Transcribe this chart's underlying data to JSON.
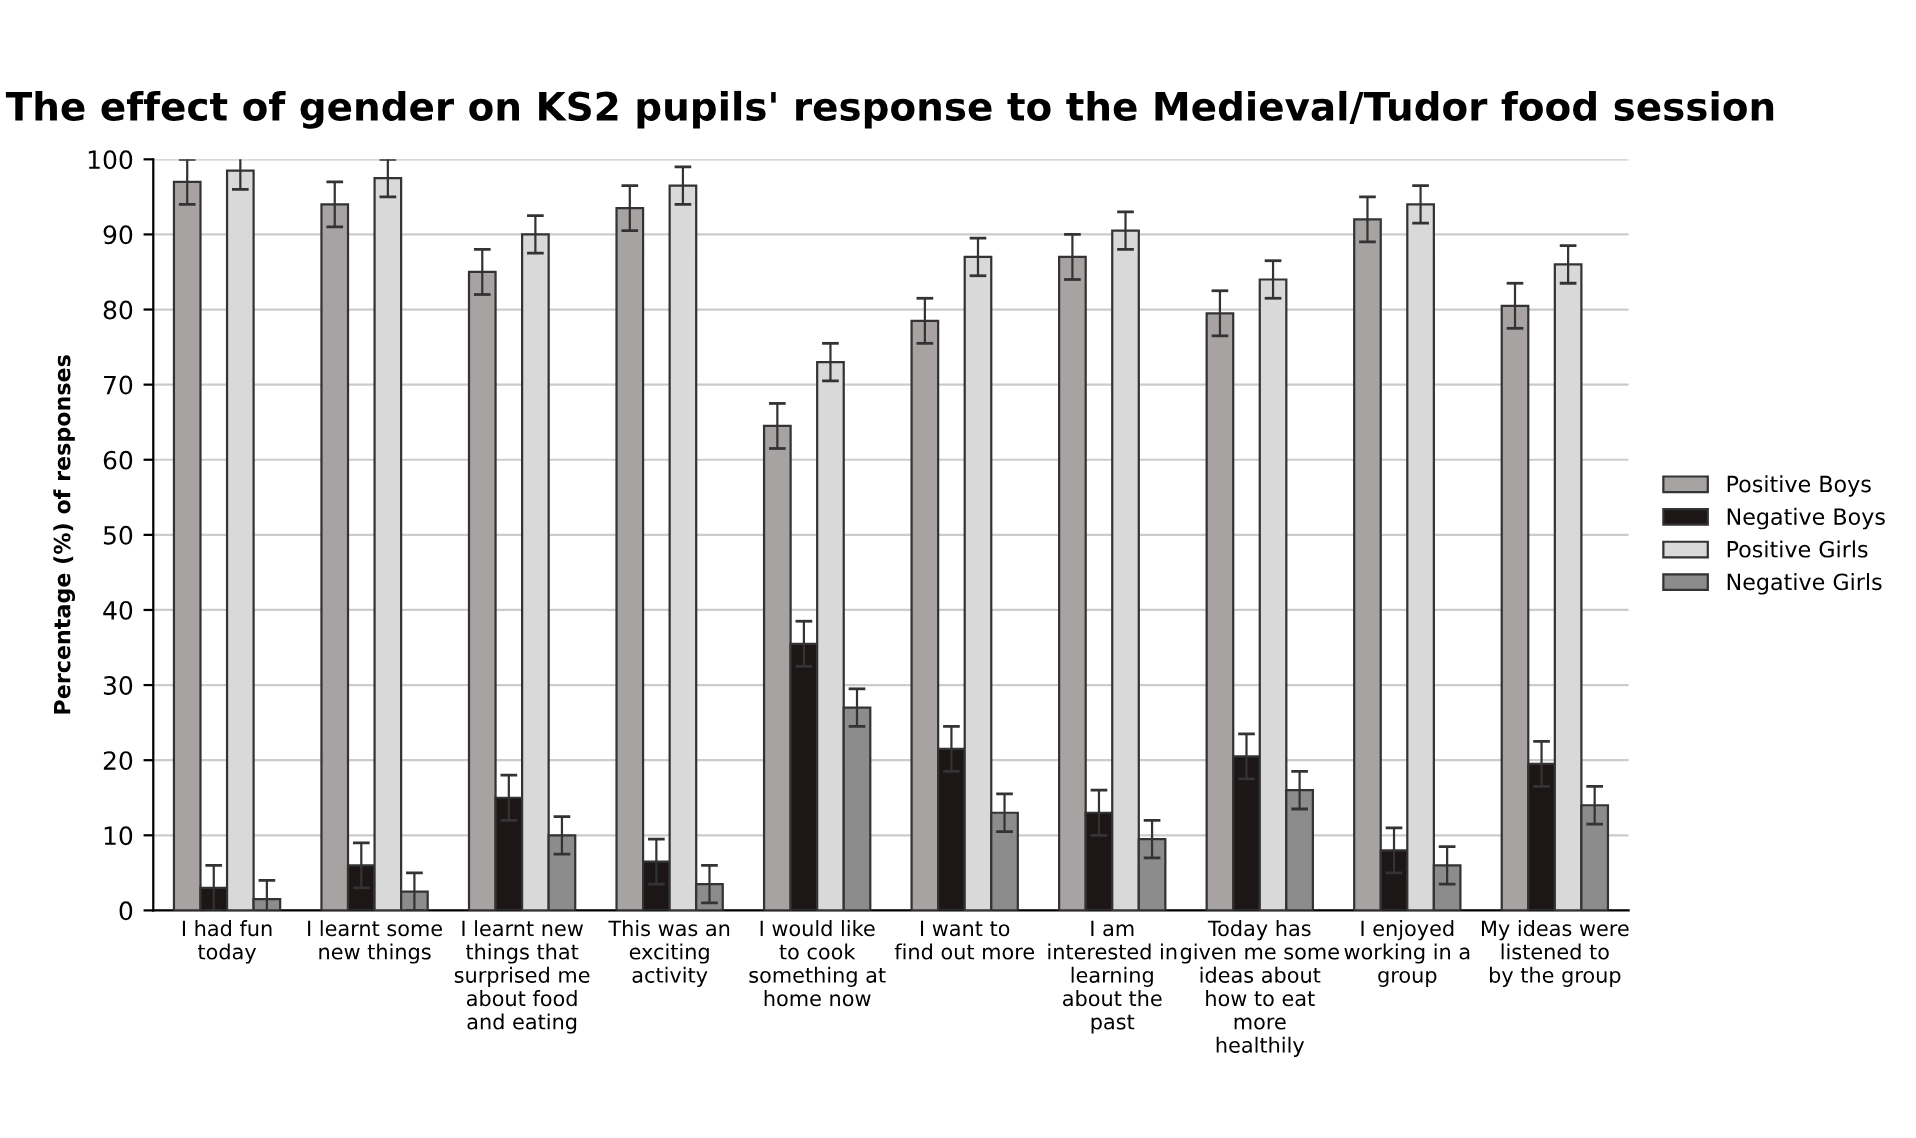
{
  "chart_data": {
    "type": "bar",
    "title": "The effect of gender on KS2 pupils' response to the Medieval/Tudor food session",
    "ylabel": "Percentage (%) of responses",
    "categories": [
      "I had fun today",
      "I learnt some new things",
      "I learnt new things that surprised me about food and eating",
      "This was an exciting activity",
      "I would like to cook something at home now",
      "I want to find out more",
      "I am interested in learning about the past",
      "Today has given me some ideas about how to eat more healthily",
      "I enjoyed working in a group",
      "My ideas were listened to by the group"
    ],
    "series": [
      {
        "name": "Positive Boys",
        "color": "#a8a3a3",
        "values": [
          97,
          94,
          85,
          93.5,
          64.5,
          78.5,
          87,
          79.5,
          92,
          80.5
        ],
        "errors": [
          3,
          3,
          3,
          3,
          3,
          3,
          3,
          3,
          3,
          3
        ]
      },
      {
        "name": "Negative Boys",
        "color": "#1c1616",
        "values": [
          3,
          6,
          15,
          6.5,
          35.5,
          21.5,
          13,
          20.5,
          8,
          19.5
        ],
        "errors": [
          3,
          3,
          3,
          3,
          3,
          3,
          3,
          3,
          3,
          3
        ]
      },
      {
        "name": "Positive Girls",
        "color": "#d9d9d9",
        "values": [
          98.5,
          97.5,
          90,
          96.5,
          73,
          87,
          90.5,
          84,
          94,
          86
        ],
        "errors": [
          2.5,
          2.5,
          2.5,
          2.5,
          2.5,
          2.5,
          2.5,
          2.5,
          2.5,
          2.5
        ]
      },
      {
        "name": "Negative Girls",
        "color": "#8c8c8c",
        "values": [
          1.5,
          2.5,
          10,
          3.5,
          27,
          13,
          9.5,
          16,
          6,
          14
        ],
        "errors": [
          2.5,
          2.5,
          2.5,
          2.5,
          2.5,
          2.5,
          2.5,
          2.5,
          2.5,
          2.5
        ]
      }
    ],
    "ylim": [
      0,
      100
    ],
    "yticks": [
      0,
      10,
      20,
      30,
      40,
      50,
      60,
      70,
      80,
      90,
      100
    ],
    "grid": "y",
    "legend": "right"
  }
}
